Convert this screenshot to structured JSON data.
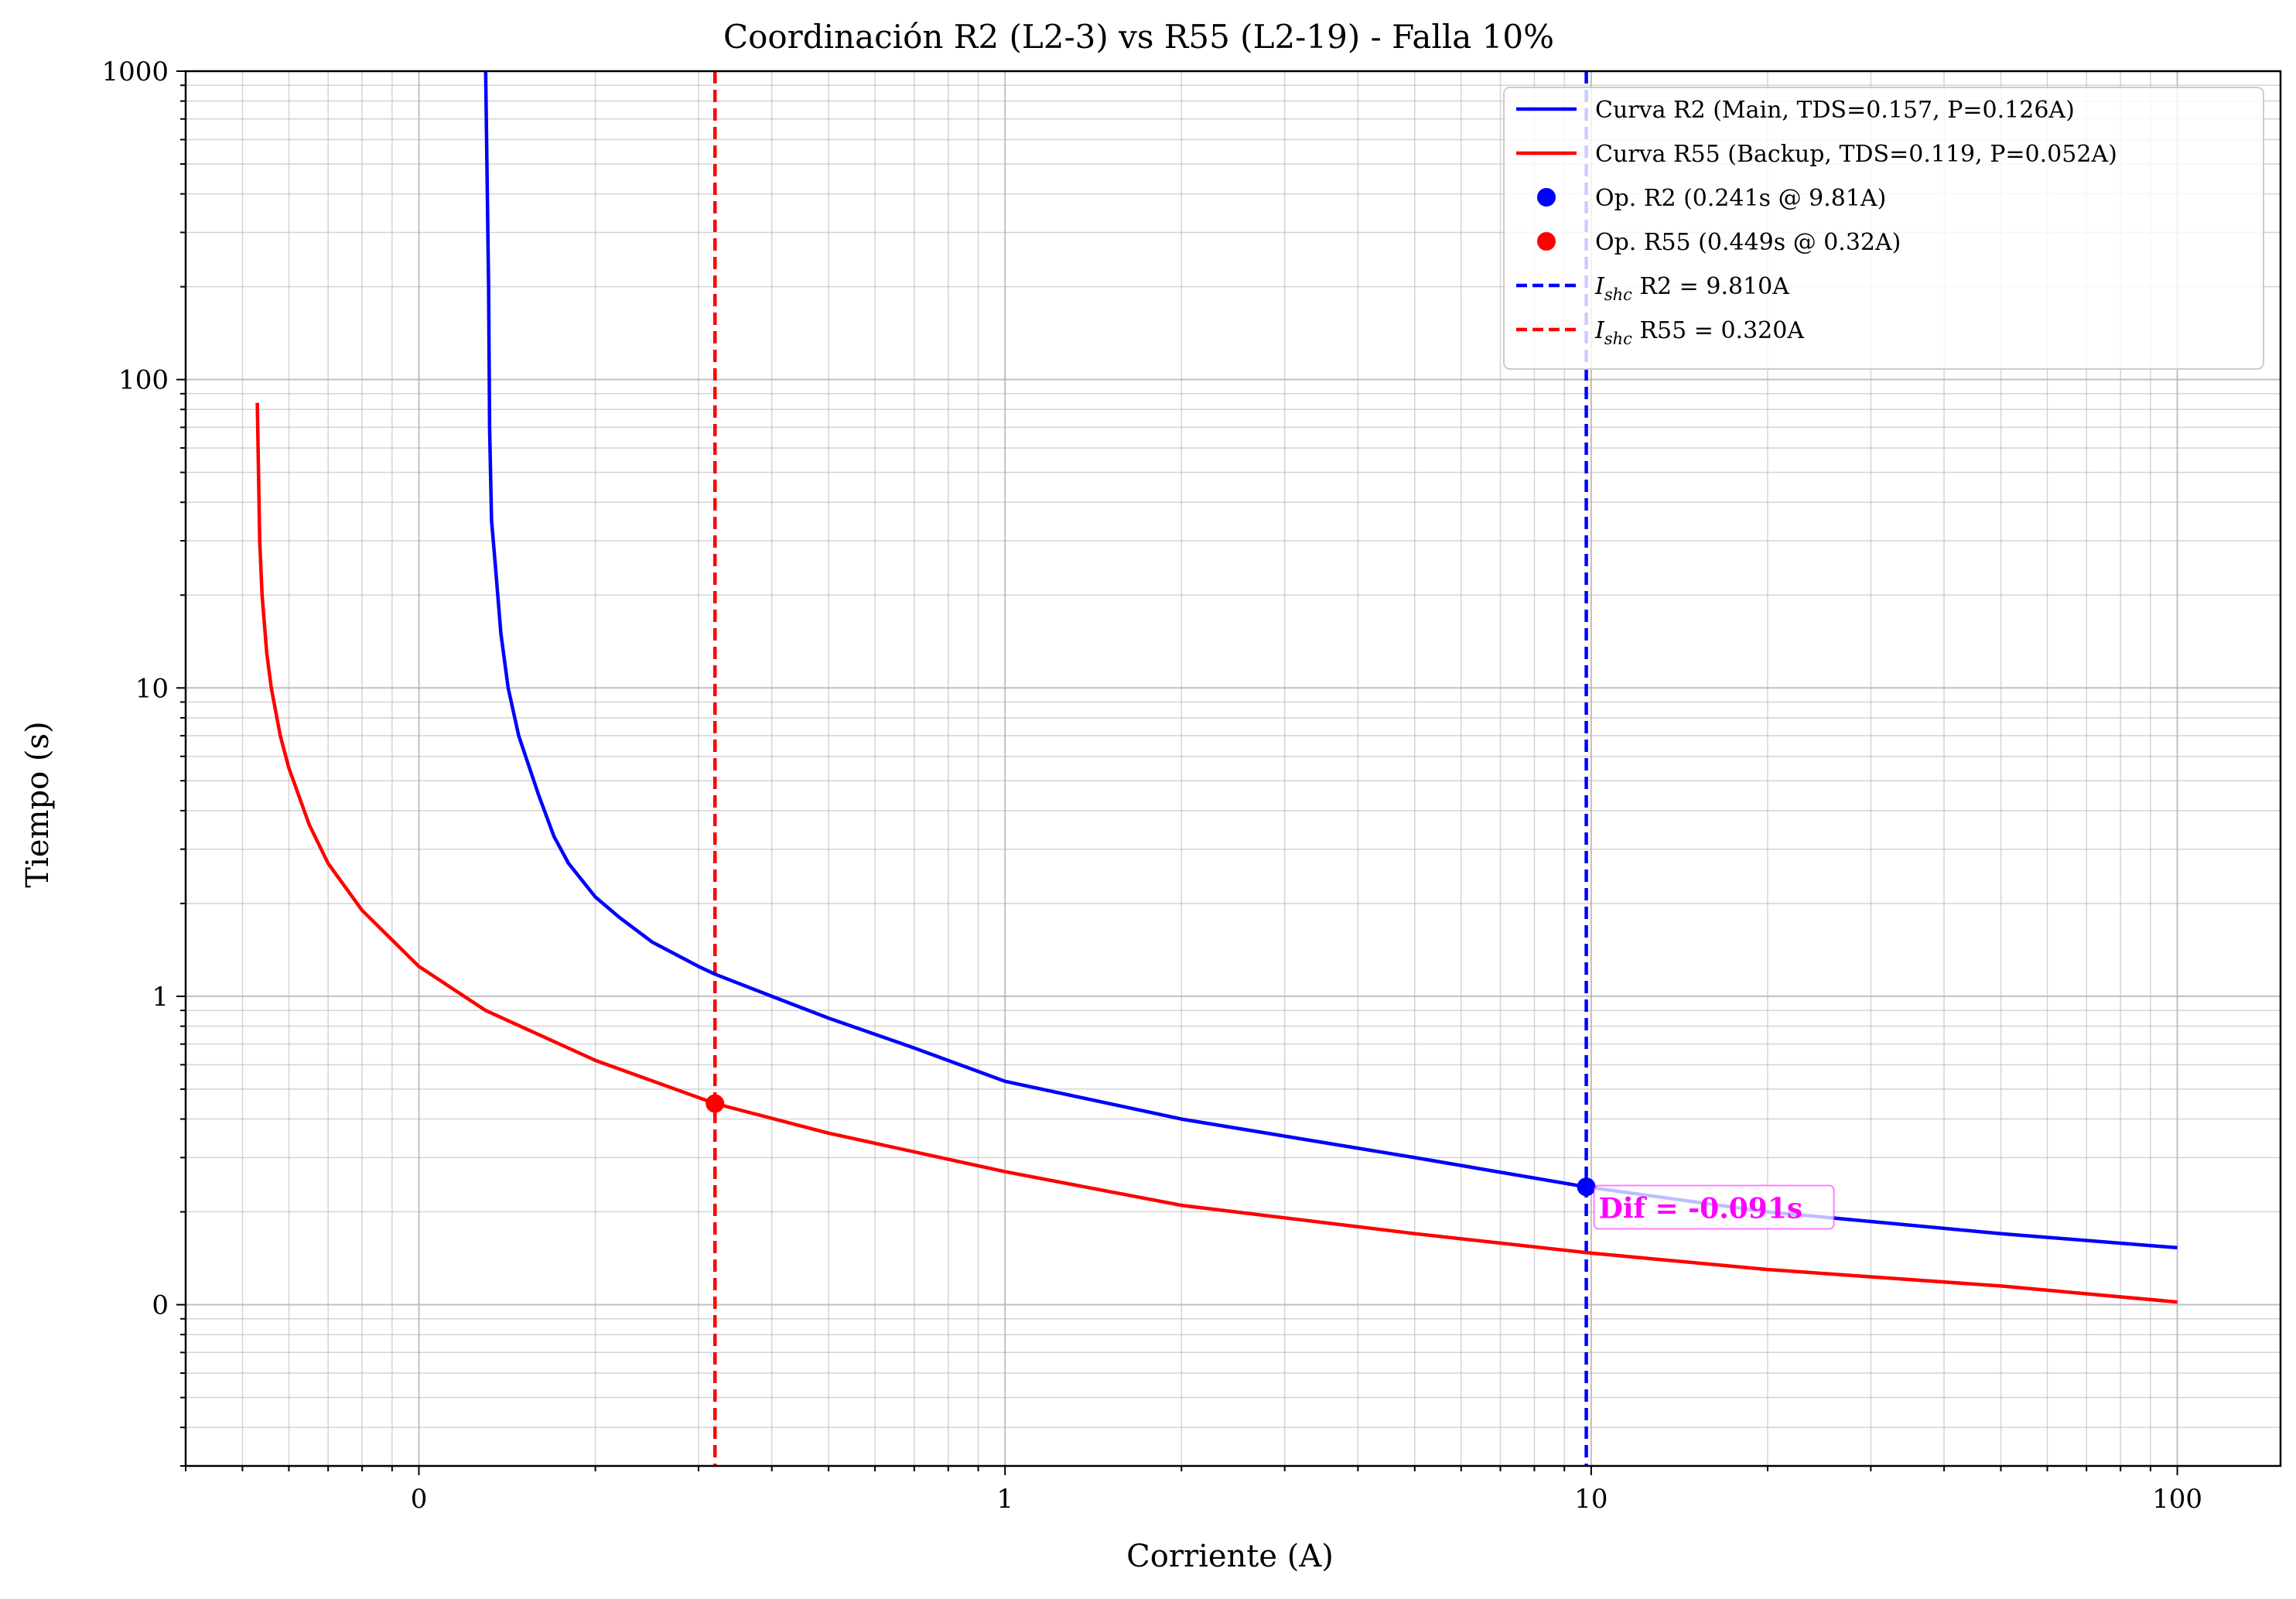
{
  "chart_data": {
    "type": "line",
    "title": "Coordinación R2 (L2-3) vs R55 (L2-19) - Falla 10%",
    "xlabel": "Corriente (A)",
    "ylabel": "Tiempo (s)",
    "xscale": "log",
    "yscale": "log",
    "xlim": [
      0.04,
      150
    ],
    "ylim": [
      0.03,
      1000
    ],
    "x_ticks": [
      {
        "value": 0.1,
        "label": "0"
      },
      {
        "value": 1,
        "label": "1"
      },
      {
        "value": 10,
        "label": "10"
      },
      {
        "value": 100,
        "label": "100"
      }
    ],
    "y_ticks": [
      {
        "value": 0.1,
        "label": "0"
      },
      {
        "value": 1,
        "label": "1"
      },
      {
        "value": 10,
        "label": "10"
      },
      {
        "value": 100,
        "label": "100"
      },
      {
        "value": 1000,
        "label": "1000"
      }
    ],
    "grid": "both",
    "legend_position": "top-right",
    "series": [
      {
        "name": "Curva R2 (Main, TDS=0.157, P=0.126A)",
        "color": "#0000ff",
        "style": "solid",
        "x": [
          0.13,
          0.1315,
          0.132,
          0.1325,
          0.133,
          0.135,
          0.138,
          0.142,
          0.148,
          0.16,
          0.17,
          0.18,
          0.2,
          0.22,
          0.25,
          0.3,
          0.32,
          0.4,
          0.5,
          0.7,
          1,
          2,
          5,
          9.81,
          20,
          50,
          100
        ],
        "y": [
          1000,
          200,
          70,
          50,
          35,
          25,
          15,
          10,
          7,
          4.5,
          3.3,
          2.7,
          2.1,
          1.8,
          1.5,
          1.25,
          1.18,
          1.0,
          0.85,
          0.68,
          0.53,
          0.4,
          0.3,
          0.241,
          0.2,
          0.17,
          0.153
        ]
      },
      {
        "name": "Curva R55 (Backup, TDS=0.119, P=0.052A)",
        "color": "#ff0000",
        "style": "solid",
        "x": [
          0.053,
          0.0535,
          0.054,
          0.055,
          0.056,
          0.058,
          0.06,
          0.065,
          0.07,
          0.08,
          0.1,
          0.13,
          0.2,
          0.32,
          0.5,
          1,
          2,
          5,
          10,
          20,
          50,
          100
        ],
        "y": [
          84,
          30,
          20,
          13,
          10,
          7,
          5.5,
          3.6,
          2.7,
          1.9,
          1.25,
          0.9,
          0.62,
          0.449,
          0.36,
          0.27,
          0.21,
          0.17,
          0.147,
          0.13,
          0.115,
          0.102
        ]
      }
    ],
    "points": [
      {
        "name": "Op. R2 (0.241s @ 9.81A)",
        "x": 9.81,
        "y": 0.241,
        "color": "#0000ff"
      },
      {
        "name": "Op. R55 (0.449s @ 0.32A)",
        "x": 0.32,
        "y": 0.449,
        "color": "#ff0000"
      }
    ],
    "vlines": [
      {
        "name_prefix": "I",
        "name_sub": "shc",
        "name_rest": " R2 = 9.810A",
        "x": 9.81,
        "color": "#0000ff",
        "style": "dashed"
      },
      {
        "name_prefix": "I",
        "name_sub": "shc",
        "name_rest": " R55 = 0.320A",
        "x": 0.32,
        "color": "#ff0000",
        "style": "dashed"
      }
    ],
    "annotation": {
      "text": "Dif = -0.091s",
      "x": 10.3,
      "y": 0.2,
      "color": "#ff00ff"
    }
  }
}
